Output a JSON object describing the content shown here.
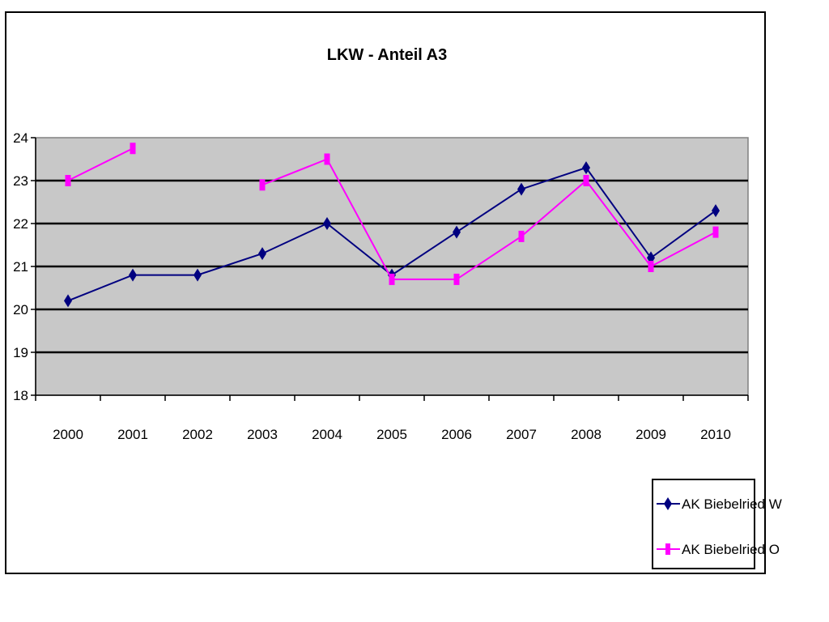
{
  "chart_data": {
    "type": "line",
    "title": "LKW - Anteil A3",
    "xlabel": "",
    "ylabel": "",
    "categories": [
      "2000",
      "2001",
      "2002",
      "2003",
      "2004",
      "2005",
      "2006",
      "2007",
      "2008",
      "2009",
      "2010"
    ],
    "ylim": [
      18,
      24
    ],
    "yticks": [
      "18",
      "19",
      "20",
      "21",
      "22",
      "23",
      "24"
    ],
    "grid": true,
    "legend_position": "bottom-right",
    "plot_background": "#c8c8c8",
    "series": [
      {
        "name": "AK Biebelried W",
        "color": "#000080",
        "marker": "diamond",
        "values": [
          20.2,
          20.8,
          20.8,
          21.3,
          22.0,
          20.8,
          21.8,
          22.8,
          23.3,
          21.2,
          22.3
        ]
      },
      {
        "name": "AK Biebelried O",
        "color": "#ff00ff",
        "marker": "square",
        "values": [
          23.0,
          23.75,
          null,
          22.9,
          23.5,
          20.7,
          20.7,
          21.7,
          23.0,
          21.0,
          21.8
        ]
      }
    ]
  }
}
